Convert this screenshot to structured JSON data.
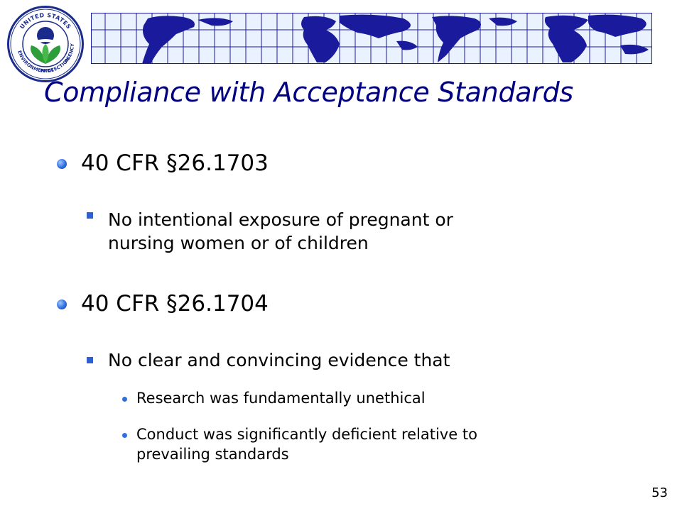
{
  "logo": {
    "top_text": "UNITED STATES",
    "left_text": "ENVIRONMENTAL",
    "bottom_text": "PROTECTION",
    "right_text": "AGENCY"
  },
  "slide": {
    "title": "Compliance with Acceptance Standards",
    "bullets": [
      {
        "text": "40 CFR §26.1703",
        "subs": [
          {
            "lines": [
              "No intentional exposure of pregnant or",
              "nursing women or of children"
            ]
          }
        ]
      },
      {
        "text": "40 CFR §26.1704",
        "subs": [
          {
            "lines": [
              "No clear and convincing evidence that"
            ],
            "subsubs": [
              {
                "lines": [
                  "Research was fundamentally unethical"
                ]
              },
              {
                "lines": [
                  "Conduct was significantly deficient relative to",
                  "prevailing standards"
                ]
              }
            ]
          }
        ]
      }
    ],
    "page_number": "53"
  },
  "colors": {
    "title": "#000080",
    "banner_bg": "#e8f0ff",
    "banner_land": "#1a1a9c",
    "grid": "#1a1a9c",
    "bullet": "#2f6fe0"
  },
  "icons": {
    "logo": "epa-seal-icon",
    "banner": "world-map-grid-icon"
  }
}
